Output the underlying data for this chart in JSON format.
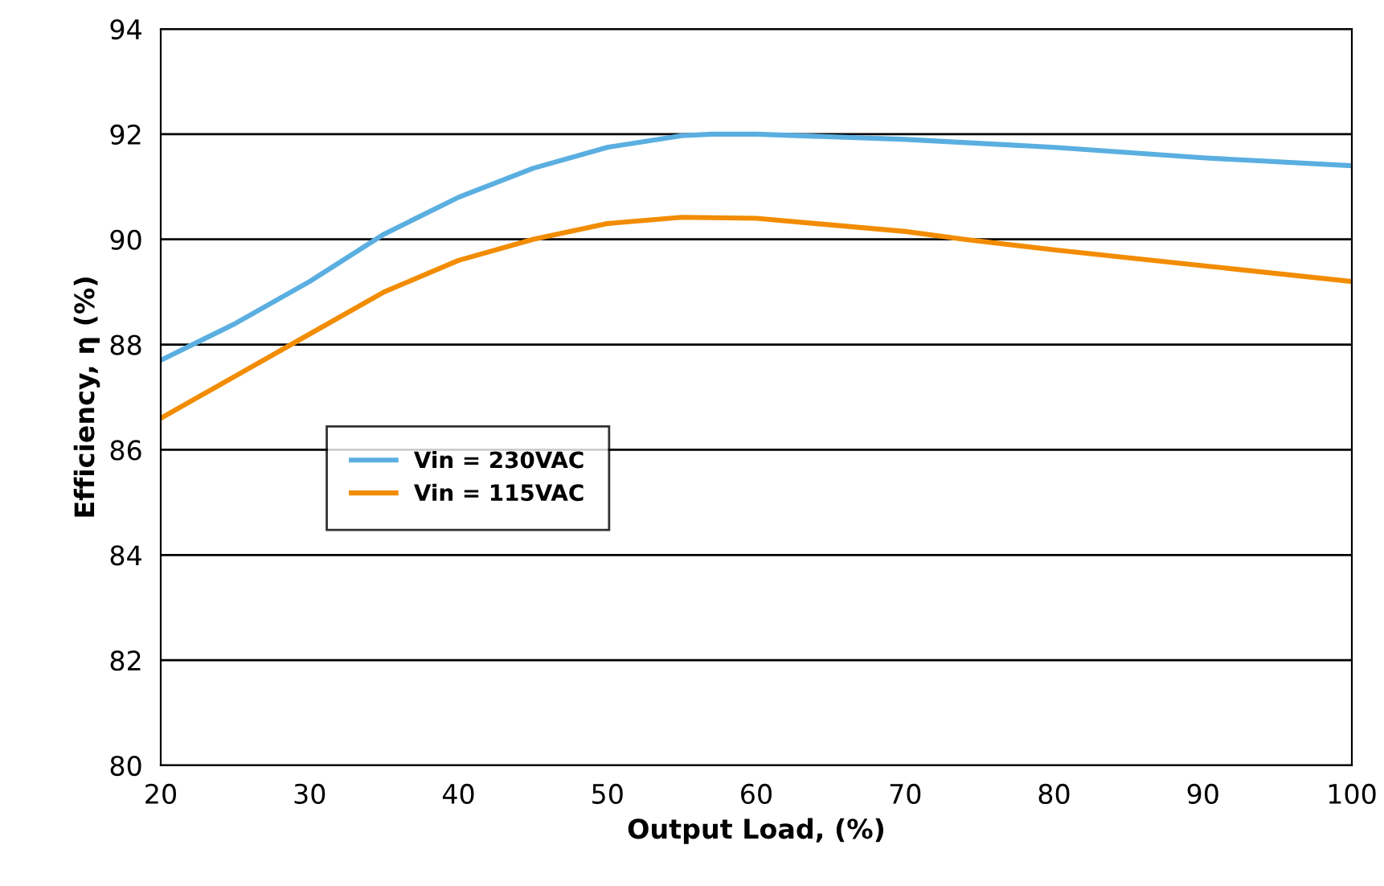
{
  "chart_data": {
    "type": "line",
    "xlabel": "Output Load, (%)",
    "ylabel": "Efficiency, η (%)",
    "xlim": [
      20,
      100
    ],
    "xticks": [
      20,
      30,
      40,
      50,
      60,
      70,
      80,
      90,
      100
    ],
    "ylim": [
      80,
      94
    ],
    "yticks": [
      80,
      82,
      84,
      86,
      88,
      90,
      92,
      94
    ],
    "grid": "y",
    "legend": "left",
    "marker": "none",
    "line_style": "solid",
    "series": [
      {
        "name": "Vin = 230VAC",
        "color": "#5aafe0",
        "x": [
          20,
          25,
          30,
          35,
          40,
          45,
          50,
          55,
          57,
          60,
          70,
          80,
          90,
          100
        ],
        "values": [
          87.7,
          88.4,
          89.2,
          90.1,
          90.8,
          91.35,
          91.75,
          91.97,
          92.0,
          92.0,
          91.9,
          91.75,
          91.55,
          91.4
        ]
      },
      {
        "name": "Vin = 115VAC",
        "color": "#f28c00",
        "x": [
          20,
          25,
          30,
          35,
          40,
          45,
          50,
          55,
          60,
          70,
          74,
          80,
          90,
          100
        ],
        "values": [
          86.6,
          87.4,
          88.2,
          89.0,
          89.6,
          90.0,
          90.3,
          90.42,
          90.4,
          90.15,
          90.0,
          89.8,
          89.5,
          89.2
        ]
      }
    ]
  }
}
